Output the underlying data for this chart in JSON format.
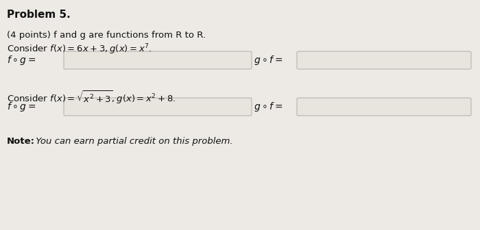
{
  "title": "Problem 5.",
  "line1": "(4 points) f and g are functions from R to R.",
  "line2": "Consider $f(x) = 6x + 3, g(x) = x^7$.",
  "fog_label": "$f \\circ g =$",
  "gof_label": "$g \\circ f =$",
  "line3": "Consider $f(x) = \\sqrt{x^2 + 3}, g(x) = x^2 + 8$.",
  "fog_label2": "$f \\circ g =$",
  "gof_label2": "$g \\circ f =$",
  "note_bold": "Note:",
  "note_italic": " You can earn partial credit on this problem.",
  "bg_color": "#edeae5",
  "box_edge_color": "#b0aba4",
  "box_fill_color": "#e8e4de",
  "text_color": "#111111"
}
